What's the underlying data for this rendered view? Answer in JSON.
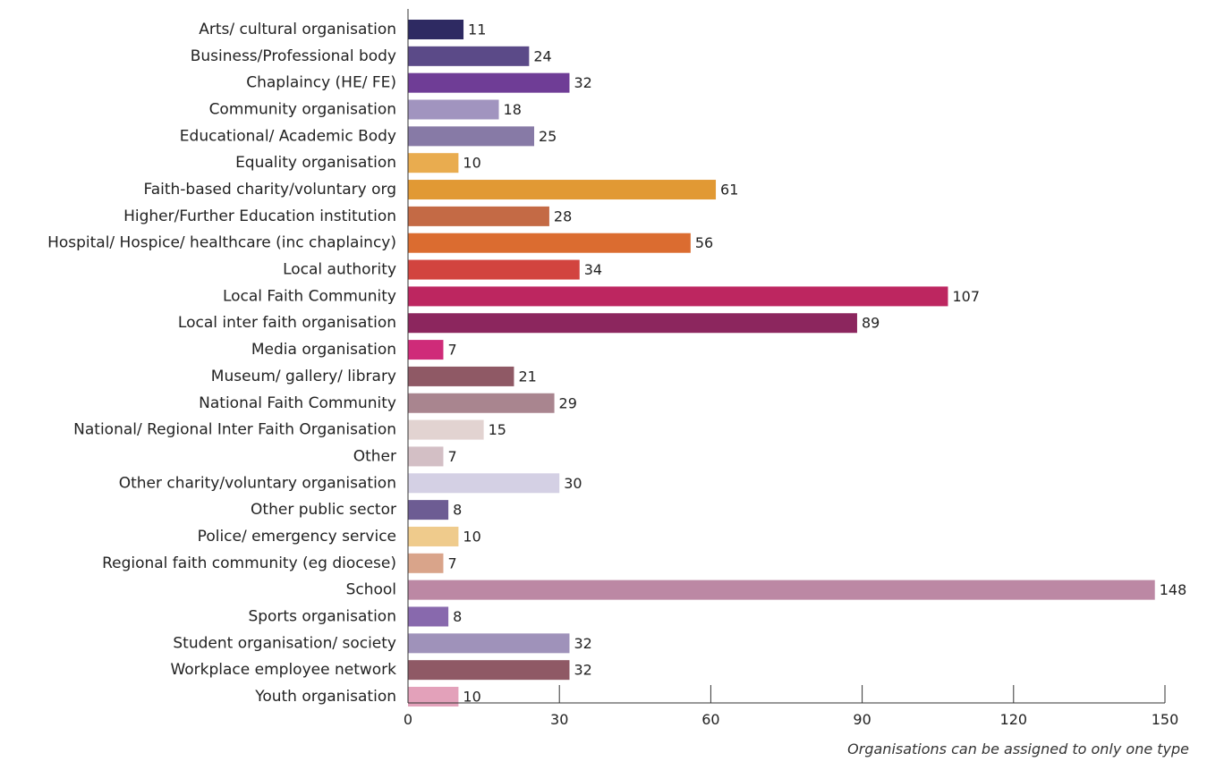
{
  "chart_data": {
    "type": "bar",
    "orientation": "horizontal",
    "categories": [
      "Arts/ cultural organisation",
      "Business/Professional body",
      "Chaplaincy (HE/ FE)",
      "Community organisation",
      "Educational/ Academic Body",
      "Equality organisation",
      "Faith-based charity/voluntary org",
      "Higher/Further Education institution",
      "Hospital/ Hospice/ healthcare (inc chaplaincy)",
      "Local authority",
      "Local Faith Community",
      "Local inter faith organisation",
      "Media organisation",
      "Museum/ gallery/ library",
      "National Faith Community",
      "National/ Regional Inter Faith Organisation",
      "Other",
      "Other charity/voluntary organisation",
      "Other public sector",
      "Police/ emergency service",
      "Regional faith community (eg diocese)",
      "School",
      "Sports organisation",
      "Student organisation/ society",
      "Workplace employee network",
      "Youth organisation"
    ],
    "values": [
      11,
      24,
      32,
      18,
      25,
      10,
      61,
      28,
      56,
      34,
      107,
      89,
      7,
      21,
      29,
      15,
      7,
      30,
      8,
      10,
      7,
      148,
      8,
      32,
      32,
      10
    ],
    "colors": [
      "#2e2a62",
      "#5b4a88",
      "#6f3d96",
      "#a194bf",
      "#877aa6",
      "#e9ac4f",
      "#e19934",
      "#c46a45",
      "#db6c30",
      "#d2443f",
      "#bd2660",
      "#8c265e",
      "#cf2b79",
      "#8f5965",
      "#a9858f",
      "#e2d3d1",
      "#d3bfc5",
      "#d4d0e4",
      "#6d5c93",
      "#efcb8c",
      "#d9a48a",
      "#bc88a4",
      "#8869ad",
      "#9f92ba",
      "#8f5965",
      "#e3a1ba"
    ],
    "xlim": [
      0,
      150
    ],
    "xticks": [
      0,
      30,
      60,
      90,
      120,
      150
    ],
    "title": "",
    "xlabel": "",
    "ylabel": "",
    "grid": false
  },
  "footnote": "Organisations can be assigned to only one type"
}
